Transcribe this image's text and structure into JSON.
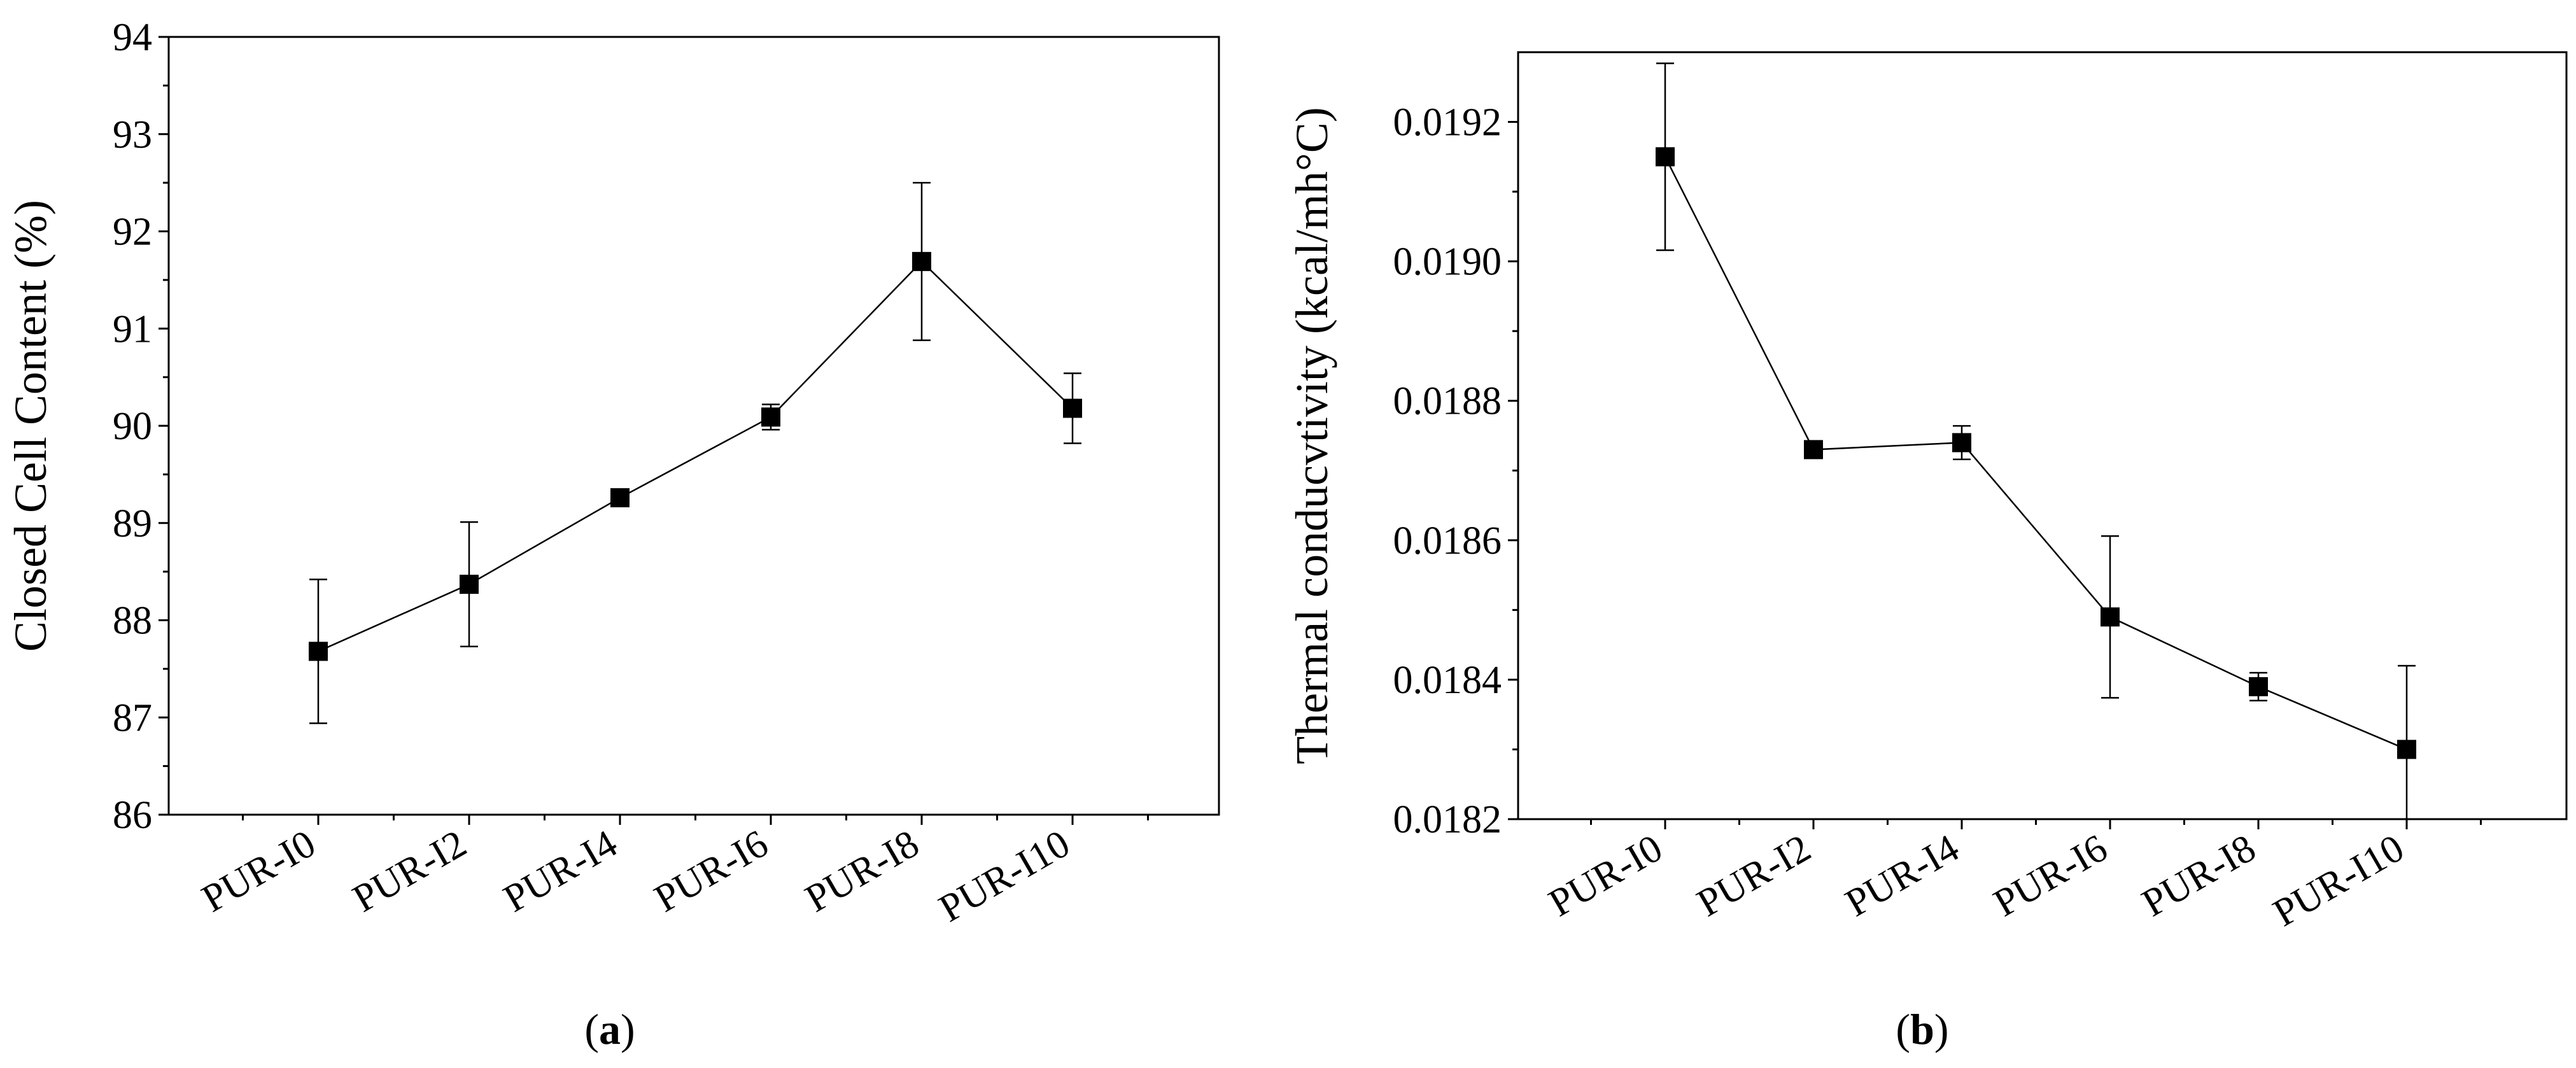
{
  "chart_data": [
    {
      "type": "line",
      "panel_label": "a",
      "ylabel": "Closed Cell Content (%)",
      "xlabel": "",
      "categories": [
        "PUR-I0",
        "PUR-I2",
        "PUR-I4",
        "PUR-I6",
        "PUR-I8",
        "PUR-I10"
      ],
      "series": [
        {
          "values": [
            87.68,
            88.37,
            89.26,
            90.09,
            91.69,
            90.18
          ],
          "errors": [
            0.74,
            0.64,
            0.07,
            0.13,
            0.81,
            0.36
          ]
        }
      ],
      "ylim": [
        86,
        94
      ],
      "yticks": [
        86,
        87,
        88,
        89,
        90,
        91,
        92,
        93,
        94
      ],
      "ytick_labels": [
        "86",
        "87",
        "88",
        "89",
        "90",
        "91",
        "92",
        "93",
        "94"
      ],
      "marker": "square",
      "grid": false,
      "legend": "none"
    },
    {
      "type": "line",
      "panel_label": "b",
      "ylabel": "Thermal conducvtivity (kcal/mh°C)",
      "xlabel": "",
      "categories": [
        "PUR-I0",
        "PUR-I2",
        "PUR-I4",
        "PUR-I6",
        "PUR-I8",
        "PUR-I10"
      ],
      "series": [
        {
          "values": [
            0.01915,
            0.01873,
            0.01874,
            0.01849,
            0.01839,
            0.0183
          ],
          "errors": [
            0.000134,
            2e-06,
            2.4e-05,
            0.000116,
            2e-05,
            0.00012
          ]
        }
      ],
      "ylim": [
        0.0182,
        0.0193
      ],
      "yticks": [
        0.0182,
        0.0184,
        0.0186,
        0.0188,
        0.019,
        0.0192
      ],
      "ytick_labels": [
        "0.0182",
        "0.0184",
        "0.0186",
        "0.0188",
        "0.0190",
        "0.0192"
      ],
      "marker": "square",
      "grid": false,
      "legend": "none"
    }
  ],
  "captions": [
    {
      "open": "(",
      "letter": "a",
      "close": ")"
    },
    {
      "open": "(",
      "letter": "b",
      "close": ")"
    }
  ]
}
